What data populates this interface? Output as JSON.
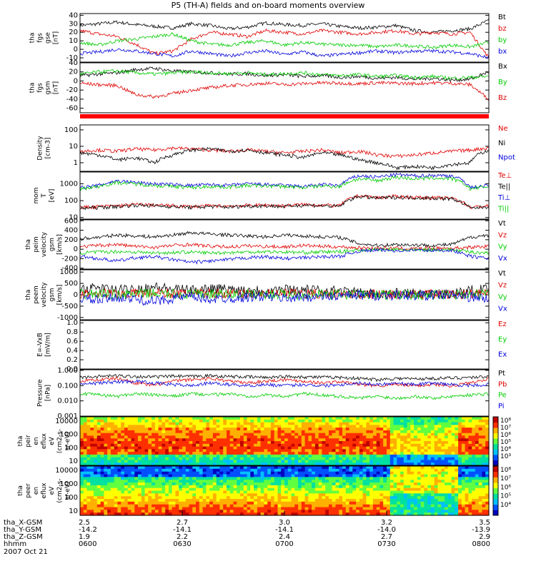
{
  "title": "P5 (TH-A) fields and on-board moments overview",
  "date": "2007 Oct 21",
  "colors": {
    "black": "#000000",
    "red": "#e00000",
    "green": "#00cc00",
    "blue": "#0000dd"
  },
  "chart_data": [
    {
      "type": "line",
      "panel": "fgs_gse",
      "ylabel": [
        "tha",
        "fgs",
        "gse",
        "[nT]"
      ],
      "yticks": [
        "40",
        "30",
        "20",
        "10",
        "0",
        "-10"
      ],
      "ylim": [
        -15,
        42
      ],
      "series": [
        {
          "name": "Bt",
          "color": "black",
          "values": [
            28,
            30,
            32,
            29,
            27,
            25,
            30,
            28,
            24,
            26,
            31,
            29,
            28,
            30,
            27,
            25,
            26,
            28,
            22,
            20,
            22,
            24,
            34
          ]
        },
        {
          "name": "bz",
          "color": "red",
          "values": [
            22,
            18,
            15,
            6,
            -5,
            -2,
            12,
            20,
            18,
            15,
            22,
            20,
            18,
            22,
            20,
            18,
            20,
            22,
            18,
            20,
            18,
            20,
            -10
          ]
        },
        {
          "name": "by",
          "color": "green",
          "values": [
            8,
            5,
            10,
            12,
            15,
            18,
            10,
            6,
            5,
            8,
            10,
            5,
            8,
            6,
            5,
            5,
            3,
            5,
            4,
            2,
            5,
            3,
            8
          ]
        },
        {
          "name": "bx",
          "color": "blue",
          "values": [
            -5,
            -3,
            0,
            -2,
            -5,
            -8,
            -2,
            -5,
            -8,
            -4,
            -2,
            -6,
            -3,
            -8,
            -6,
            -4,
            -2,
            -4,
            -2,
            -2,
            -3,
            -5,
            -10
          ]
        }
      ]
    },
    {
      "type": "line",
      "panel": "fgs_gsm",
      "ylabel": [
        "tha",
        "fgs",
        "gsm",
        "[nT]"
      ],
      "yticks": [
        "40",
        "20",
        "0",
        "-20",
        "-40",
        "-60"
      ],
      "ylim": [
        -70,
        40
      ],
      "series": [
        {
          "name": "Bx",
          "color": "black",
          "values": [
            12,
            15,
            18,
            25,
            28,
            22,
            20,
            18,
            15,
            16,
            12,
            14,
            10,
            12,
            8,
            10,
            6,
            8,
            4,
            6,
            2,
            4,
            20
          ]
        },
        {
          "name": "By",
          "color": "green",
          "values": [
            15,
            20,
            22,
            18,
            15,
            18,
            20,
            18,
            16,
            18,
            14,
            16,
            18,
            14,
            12,
            14,
            10,
            12,
            8,
            10,
            6,
            8,
            10
          ]
        },
        {
          "name": "Bz",
          "color": "red",
          "values": [
            -5,
            -8,
            -10,
            -30,
            -35,
            -28,
            -20,
            -15,
            -10,
            -8,
            -5,
            -8,
            -6,
            -4,
            -5,
            -6,
            -4,
            -5,
            -6,
            -4,
            -5,
            -8,
            -40
          ]
        }
      ]
    },
    {
      "type": "line",
      "panel": "density",
      "ylabel": [
        "Density",
        "[cm-3]"
      ],
      "yticks": [
        "100",
        "10",
        "1"
      ],
      "scale": "log",
      "ylim": [
        0.3,
        200
      ],
      "series": [
        {
          "name": "Ne",
          "color": "red",
          "values": [
            5,
            6,
            5,
            7,
            6,
            8,
            7,
            6,
            5,
            6,
            5,
            4,
            5,
            6,
            4,
            5,
            3,
            2.5,
            3,
            4,
            5,
            6,
            8
          ]
        },
        {
          "name": "Ni",
          "color": "black",
          "values": [
            4,
            3,
            1.5,
            2,
            1,
            3,
            6,
            7,
            5,
            6,
            4,
            3,
            2,
            4,
            3,
            1.5,
            1,
            0.5,
            0.6,
            0.5,
            0.8,
            1,
            6
          ]
        },
        {
          "name": "Npot",
          "color": "blue",
          "values": []
        }
      ]
    },
    {
      "type": "line",
      "panel": "temperature",
      "ylabel": [
        "mom",
        "T",
        "[eV]"
      ],
      "yticks": [
        "1000",
        "100",
        "10"
      ],
      "scale": "log",
      "ylim": [
        8,
        5000
      ],
      "series": [
        {
          "name": "Te⊥",
          "color": "red",
          "values": [
            40,
            45,
            50,
            60,
            55,
            50,
            45,
            50,
            48,
            52,
            55,
            50,
            60,
            55,
            50,
            200,
            150,
            180,
            160,
            150,
            140,
            40,
            50
          ]
        },
        {
          "name": "Te||",
          "color": "black",
          "values": [
            35,
            40,
            45,
            55,
            50,
            45,
            40,
            45,
            42,
            48,
            50,
            45,
            55,
            50,
            45,
            180,
            140,
            160,
            150,
            140,
            130,
            35,
            45
          ]
        },
        {
          "name": "Ti⊥",
          "color": "blue",
          "values": [
            600,
            800,
            1500,
            1200,
            1000,
            900,
            800,
            900,
            800,
            1000,
            900,
            800,
            700,
            900,
            800,
            3000,
            2500,
            3500,
            3000,
            3200,
            3000,
            600,
            800
          ]
        },
        {
          "name": "Ti||",
          "color": "green",
          "values": [
            500,
            700,
            1200,
            1000,
            800,
            700,
            600,
            700,
            650,
            800,
            750,
            700,
            600,
            750,
            700,
            2000,
            1500,
            2500,
            2000,
            2200,
            2000,
            500,
            700
          ]
        }
      ]
    },
    {
      "type": "line",
      "panel": "peim_velocity",
      "ylabel": [
        "tha",
        "peim",
        "velocity",
        "gsm",
        "[km/s]"
      ],
      "yticks": [
        "600",
        "400",
        "200",
        "0",
        "-200",
        "-400"
      ],
      "ylim": [
        -420,
        620
      ],
      "series": [
        {
          "name": "Vt",
          "color": "black",
          "values": [
            220,
            250,
            300,
            280,
            260,
            300,
            350,
            320,
            300,
            280,
            260,
            300,
            280,
            260,
            250,
            120,
            80,
            100,
            90,
            80,
            100,
            250,
            300
          ]
        },
        {
          "name": "Vz",
          "color": "red",
          "values": [
            50,
            80,
            100,
            60,
            40,
            80,
            100,
            60,
            50,
            70,
            60,
            50,
            80,
            60,
            50,
            30,
            20,
            20,
            10,
            20,
            20,
            40,
            60
          ]
        },
        {
          "name": "Vy",
          "color": "green",
          "values": [
            -80,
            -60,
            -50,
            -60,
            -80,
            -70,
            -60,
            -80,
            -70,
            -60,
            -50,
            -60,
            -70,
            -60,
            -50,
            -20,
            -10,
            -10,
            -20,
            -10,
            -10,
            -60,
            -80
          ]
        },
        {
          "name": "Vx",
          "color": "blue",
          "values": [
            -150,
            -200,
            -250,
            -180,
            -160,
            -220,
            -280,
            -250,
            -220,
            -180,
            -160,
            -200,
            -180,
            -160,
            -150,
            -40,
            -20,
            -30,
            -20,
            -30,
            -20,
            -150,
            -200
          ]
        }
      ]
    },
    {
      "type": "line",
      "panel": "peem_velocity",
      "ylabel": [
        "tha",
        "peem",
        "velocity",
        "gsm",
        "[km/s]"
      ],
      "yticks": [
        "1000",
        "500",
        "0",
        "-500",
        "-1000"
      ],
      "ylim": [
        -1100,
        1100
      ],
      "series": [
        {
          "name": "Vt",
          "color": "black",
          "values": [
            250,
            300,
            200,
            280,
            350,
            250,
            200,
            300,
            250,
            220,
            200,
            250,
            220,
            200,
            180,
            80,
            60,
            70,
            60,
            50,
            60,
            200,
            250
          ]
        },
        {
          "name": "Vz",
          "color": "red",
          "values": [
            50,
            80,
            30,
            60,
            100,
            50,
            40,
            60,
            50,
            40,
            30,
            50,
            40,
            30,
            20,
            10,
            10,
            10,
            10,
            10,
            10,
            40,
            60
          ]
        },
        {
          "name": "Vy",
          "color": "green",
          "values": [
            20,
            40,
            10,
            30,
            60,
            20,
            10,
            30,
            20,
            10,
            10,
            20,
            10,
            10,
            10,
            0,
            0,
            0,
            0,
            0,
            0,
            20,
            30
          ]
        },
        {
          "name": "Vx",
          "color": "blue",
          "values": [
            -150,
            -250,
            -100,
            -200,
            -300,
            -150,
            -100,
            -200,
            -150,
            -100,
            -80,
            -150,
            -100,
            -80,
            -60,
            -20,
            -20,
            -20,
            -20,
            -20,
            -20,
            -100,
            -200
          ]
        }
      ]
    },
    {
      "type": "line",
      "panel": "efield",
      "ylabel": [
        "E=-VxB",
        "[mV/m]"
      ],
      "yticks": [
        "1.0",
        "0.8",
        "0.6",
        "0.4",
        "0.2",
        "0.0"
      ],
      "ylim": [
        0,
        1.05
      ],
      "series": [
        {
          "name": "Ez",
          "color": "red",
          "values": []
        },
        {
          "name": "Ey",
          "color": "green",
          "values": []
        },
        {
          "name": "Ex",
          "color": "blue",
          "values": []
        }
      ]
    },
    {
      "type": "line",
      "panel": "pressure",
      "ylabel": [
        "Pressure",
        "[nPa]"
      ],
      "yticks": [
        "1.000",
        "0.100",
        "0.010",
        "0.001"
      ],
      "scale": "log",
      "ylim": [
        0.001,
        1.1
      ],
      "series": [
        {
          "name": "Pt",
          "color": "black",
          "values": [
            0.35,
            0.4,
            0.45,
            0.4,
            0.38,
            0.42,
            0.4,
            0.45,
            0.4,
            0.38,
            0.35,
            0.4,
            0.38,
            0.36,
            0.35,
            0.3,
            0.25,
            0.3,
            0.28,
            0.3,
            0.32,
            0.35,
            0.4
          ]
        },
        {
          "name": "Pb",
          "color": "red",
          "values": [
            0.2,
            0.25,
            0.3,
            0.15,
            0.1,
            0.2,
            0.25,
            0.3,
            0.2,
            0.15,
            0.2,
            0.25,
            0.2,
            0.15,
            0.18,
            0.12,
            0.1,
            0.12,
            0.1,
            0.12,
            0.1,
            0.15,
            0.3
          ]
        },
        {
          "name": "Pe",
          "color": "green",
          "values": [
            0.03,
            0.025,
            0.02,
            0.03,
            0.025,
            0.02,
            0.03,
            0.025,
            0.03,
            0.02,
            0.025,
            0.02,
            0.03,
            0.025,
            0.02,
            0.015,
            0.02,
            0.015,
            0.02,
            0.015,
            0.02,
            0.025,
            0.03
          ]
        },
        {
          "name": "Pi",
          "color": "blue",
          "values": [
            0.12,
            0.15,
            0.18,
            0.2,
            0.15,
            0.12,
            0.1,
            0.15,
            0.12,
            0.1,
            0.12,
            0.1,
            0.12,
            0.1,
            0.12,
            0.15,
            0.12,
            0.15,
            0.12,
            0.15,
            0.12,
            0.1,
            0.12
          ]
        }
      ]
    },
    {
      "type": "heatmap",
      "panel": "peir_spectrogram",
      "ylabel": [
        "tha",
        "peir",
        "en",
        "eflux",
        "eV",
        "(cm2-s-",
        "sr-eV)"
      ],
      "yticks": [
        "10000",
        "1000",
        "100",
        "10"
      ],
      "cbar_ticks": [
        "10⁸",
        "10⁷",
        "10⁶",
        "10⁵",
        "10⁴",
        "10³"
      ]
    },
    {
      "type": "heatmap",
      "panel": "peer_spectrogram",
      "ylabel": [
        "tha",
        "peer",
        "en",
        "eflux",
        "eV",
        "(cm2-s-",
        "sr-eV)"
      ],
      "yticks": [
        "10000",
        "1000",
        "100",
        "10"
      ],
      "cbar_ticks": [
        "10⁸",
        "10⁷",
        "10⁶",
        "10⁵",
        "10⁴"
      ]
    }
  ],
  "xaxis": {
    "ticks": [
      {
        "x": "2.5",
        "y": "-14.2",
        "z": "1.9",
        "t": "0600"
      },
      {
        "x": "2.7",
        "y": "-14.1",
        "z": "2.2",
        "t": "0630"
      },
      {
        "x": "3.0",
        "y": "-14.1",
        "z": "2.4",
        "t": "0700"
      },
      {
        "x": "3.2",
        "y": "-14.0",
        "z": "2.7",
        "t": "0730"
      },
      {
        "x": "3.5",
        "y": "-13.9",
        "z": "2.9",
        "t": "0800"
      }
    ],
    "row_labels": [
      "tha_X-GSM",
      "tha_Y-GSM",
      "tha_Z-GSM",
      "hhmm"
    ]
  }
}
